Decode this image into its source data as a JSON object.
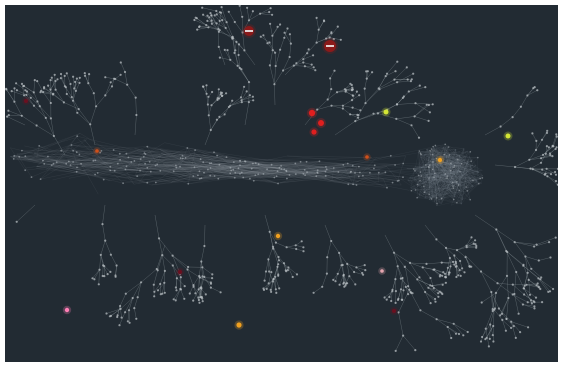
{
  "graph": {
    "background_color": "#222b33",
    "edge_color": "#9aa3a8",
    "node_color": "#b7bec2",
    "highlight_node_colors": {
      "red": "#e01f1f",
      "dark_red": "#8b1a1a",
      "orange": "#f0a020",
      "yellow_green": "#d4e635",
      "pink": "#ff7eb6",
      "maroon": "#6a1020",
      "light_pink": "#e6a6b0",
      "orange_red": "#d0501a"
    }
  }
}
